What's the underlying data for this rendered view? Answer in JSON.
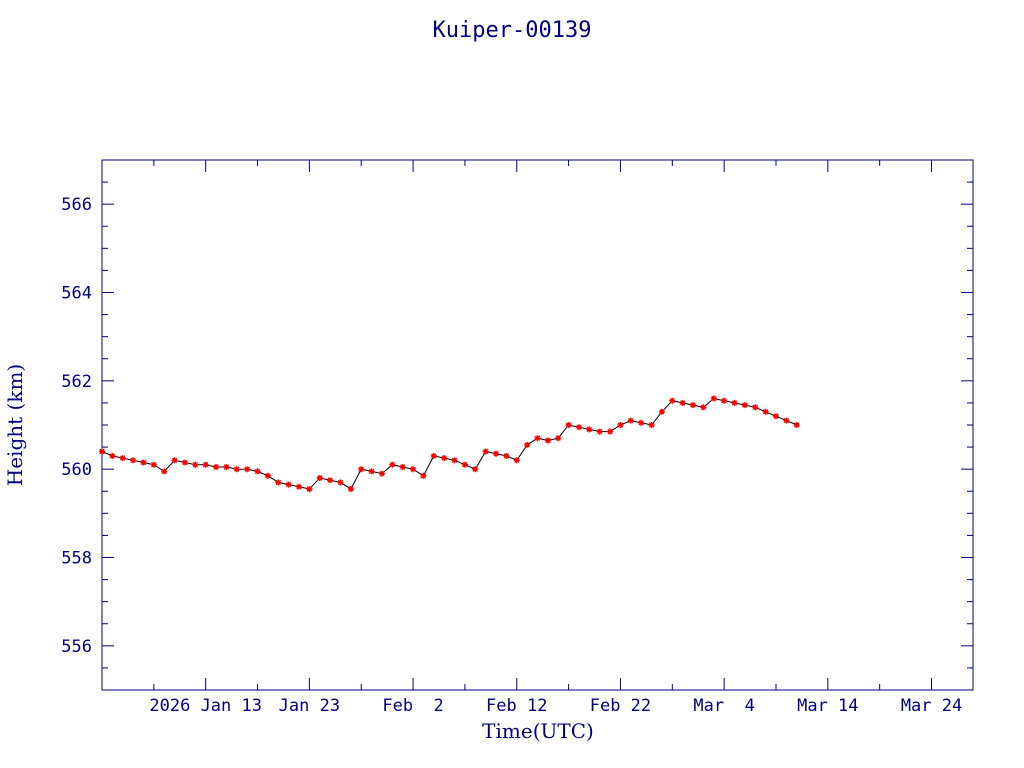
{
  "chart_data": {
    "type": "line",
    "title": "Kuiper-00139",
    "xlabel": "Time(UTC)",
    "ylabel": "Height (km)",
    "ylim": [
      555,
      567
    ],
    "xlim": [
      "2026-01-03",
      "2026-03-28"
    ],
    "yticks": [
      556,
      558,
      560,
      562,
      564,
      566
    ],
    "xticks": [
      {
        "label": "2026 Jan 13",
        "date": "2026-01-13"
      },
      {
        "label": "Jan 23",
        "date": "2026-01-23"
      },
      {
        "label": "Feb  2",
        "date": "2026-02-02"
      },
      {
        "label": "Feb 12",
        "date": "2026-02-12"
      },
      {
        "label": "Feb 22",
        "date": "2026-02-22"
      },
      {
        "label": "Mar  4",
        "date": "2026-03-04"
      },
      {
        "label": "Mar 14",
        "date": "2026-03-14"
      },
      {
        "label": "Mar 24",
        "date": "2026-03-24"
      }
    ],
    "grid": false,
    "series": [
      {
        "marker": "star",
        "color": "#ff0000",
        "line_color": "#000000",
        "x": [
          "2026-01-03",
          "2026-01-04",
          "2026-01-05",
          "2026-01-06",
          "2026-01-07",
          "2026-01-08",
          "2026-01-09",
          "2026-01-10",
          "2026-01-11",
          "2026-01-12",
          "2026-01-13",
          "2026-01-14",
          "2026-01-15",
          "2026-01-16",
          "2026-01-17",
          "2026-01-18",
          "2026-01-19",
          "2026-01-20",
          "2026-01-21",
          "2026-01-22",
          "2026-01-23",
          "2026-01-24",
          "2026-01-25",
          "2026-01-26",
          "2026-01-27",
          "2026-01-28",
          "2026-01-29",
          "2026-01-30",
          "2026-01-31",
          "2026-02-01",
          "2026-02-02",
          "2026-02-03",
          "2026-02-04",
          "2026-02-05",
          "2026-02-06",
          "2026-02-07",
          "2026-02-08",
          "2026-02-09",
          "2026-02-10",
          "2026-02-11",
          "2026-02-12",
          "2026-02-13",
          "2026-02-14",
          "2026-02-15",
          "2026-02-16",
          "2026-02-17",
          "2026-02-18",
          "2026-02-19",
          "2026-02-20",
          "2026-02-21",
          "2026-02-22",
          "2026-02-23",
          "2026-02-24",
          "2026-02-25",
          "2026-02-26",
          "2026-02-27",
          "2026-02-28",
          "2026-03-01",
          "2026-03-02",
          "2026-03-03",
          "2026-03-04",
          "2026-03-05",
          "2026-03-06",
          "2026-03-07",
          "2026-03-08",
          "2026-03-09",
          "2026-03-10",
          "2026-03-11"
        ],
        "y": [
          560.4,
          560.3,
          560.25,
          560.2,
          560.15,
          560.1,
          559.95,
          560.2,
          560.15,
          560.1,
          560.1,
          560.05,
          560.05,
          560.0,
          560.0,
          559.95,
          559.85,
          559.7,
          559.65,
          559.6,
          559.55,
          559.8,
          559.75,
          559.7,
          559.55,
          560.0,
          559.95,
          559.9,
          560.1,
          560.05,
          560.0,
          559.85,
          560.3,
          560.25,
          560.2,
          560.1,
          560.0,
          560.4,
          560.35,
          560.3,
          560.2,
          560.55,
          560.7,
          560.65,
          560.7,
          561.0,
          560.95,
          560.9,
          560.85,
          560.85,
          561.0,
          561.1,
          561.05,
          561.0,
          561.3,
          561.55,
          561.5,
          561.45,
          561.4,
          561.6,
          561.55,
          561.5,
          561.45,
          561.4,
          561.3,
          561.2,
          561.1,
          561.0
        ]
      }
    ]
  }
}
